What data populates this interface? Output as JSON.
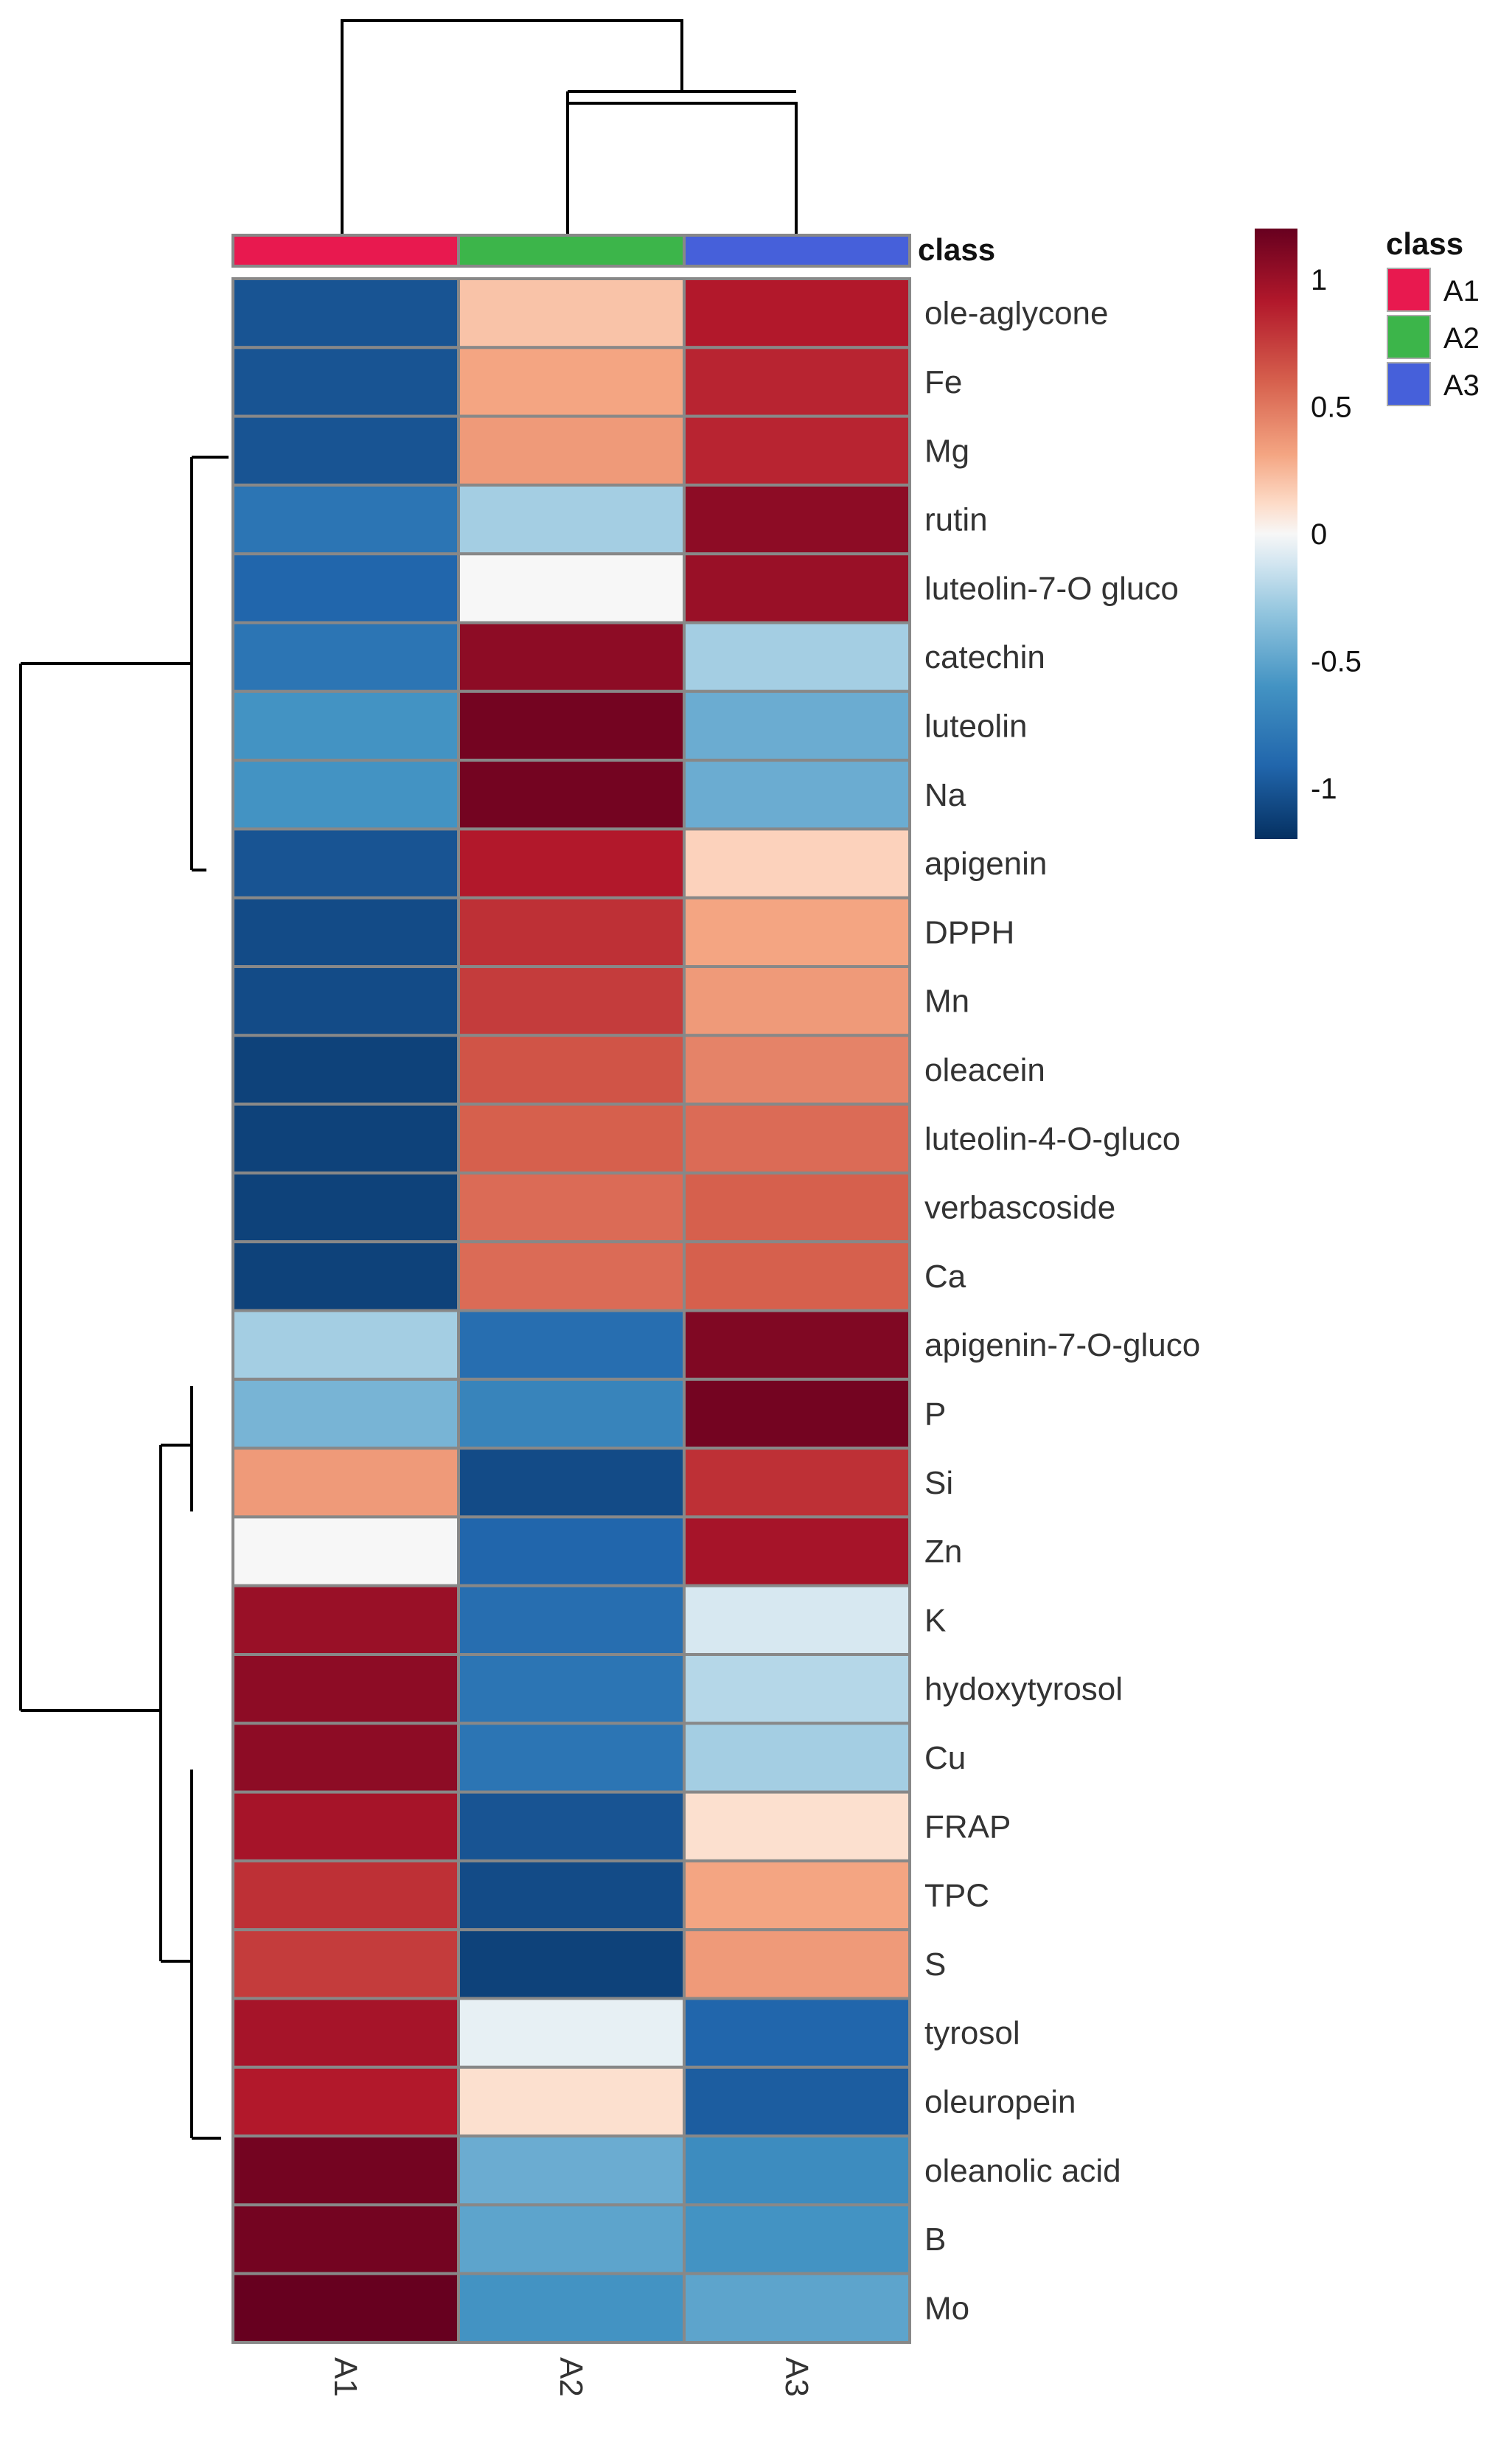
{
  "chart_data": {
    "type": "heatmap",
    "title": "",
    "columns": [
      "A1",
      "A2",
      "A3"
    ],
    "column_classes": [
      "A1",
      "A2",
      "A3"
    ],
    "annotation_title": "class",
    "rows": [
      "ole-aglycone",
      "Fe",
      "Mg",
      "rutin",
      "luteolin-7-O gluco",
      "catechin",
      "luteolin",
      "Na",
      "apigenin",
      "DPPH",
      "Mn",
      "oleacein",
      "luteolin-4-O-gluco",
      "verbascoside",
      "Ca",
      "apigenin-7-O-gluco",
      "P",
      "Si",
      "Zn",
      "K",
      "hydoxytyrosol",
      "Cu",
      "FRAP",
      "TPC",
      "S",
      "tyrosol",
      "oleuropein",
      "oleanolic acid",
      "B",
      "Mo"
    ],
    "values": [
      [
        -1.0,
        0.2,
        0.9
      ],
      [
        -1.0,
        0.3,
        0.85
      ],
      [
        -1.0,
        0.35,
        0.85
      ],
      [
        -0.8,
        -0.25,
        1.05
      ],
      [
        -0.9,
        0.0,
        1.0
      ],
      [
        -0.8,
        1.05,
        -0.25
      ],
      [
        -0.6,
        1.15,
        -0.45
      ],
      [
        -0.6,
        1.15,
        -0.45
      ],
      [
        -1.0,
        0.9,
        0.15
      ],
      [
        -1.05,
        0.8,
        0.3
      ],
      [
        -1.05,
        0.75,
        0.35
      ],
      [
        -1.1,
        0.65,
        0.45
      ],
      [
        -1.1,
        0.6,
        0.55
      ],
      [
        -1.1,
        0.55,
        0.6
      ],
      [
        -1.1,
        0.55,
        0.6
      ],
      [
        -0.25,
        -0.85,
        1.1
      ],
      [
        -0.4,
        -0.7,
        1.15
      ],
      [
        0.35,
        -1.05,
        0.8
      ],
      [
        0.0,
        -0.9,
        0.95
      ],
      [
        1.0,
        -0.85,
        -0.1
      ],
      [
        1.05,
        -0.8,
        -0.2
      ],
      [
        1.05,
        -0.8,
        -0.25
      ],
      [
        0.95,
        -1.0,
        0.1
      ],
      [
        0.8,
        -1.05,
        0.3
      ],
      [
        0.75,
        -1.1,
        0.35
      ],
      [
        0.95,
        -0.05,
        -0.9
      ],
      [
        0.9,
        0.1,
        -0.95
      ],
      [
        1.15,
        -0.45,
        -0.65
      ],
      [
        1.15,
        -0.5,
        -0.6
      ],
      [
        1.2,
        -0.6,
        -0.5
      ]
    ],
    "colorbar": {
      "range": [
        -1.2,
        1.2
      ],
      "ticks": [
        1,
        0.5,
        0,
        -0.5,
        -1
      ],
      "tick_labels": [
        "1",
        "0.5",
        "0",
        "-0.5",
        "-1"
      ],
      "low_color": "#053061",
      "mid_color": "#F7F7F7",
      "high_color": "#67001F"
    },
    "legend": {
      "title": "class",
      "entries": [
        {
          "label": "A1",
          "color": "#E8194F"
        },
        {
          "label": "A2",
          "color": "#3CB54A"
        },
        {
          "label": "A3",
          "color": "#4660DA"
        }
      ],
      "placement": "top-right"
    },
    "dendrogram": {
      "columns": "top",
      "rows": "left"
    }
  }
}
